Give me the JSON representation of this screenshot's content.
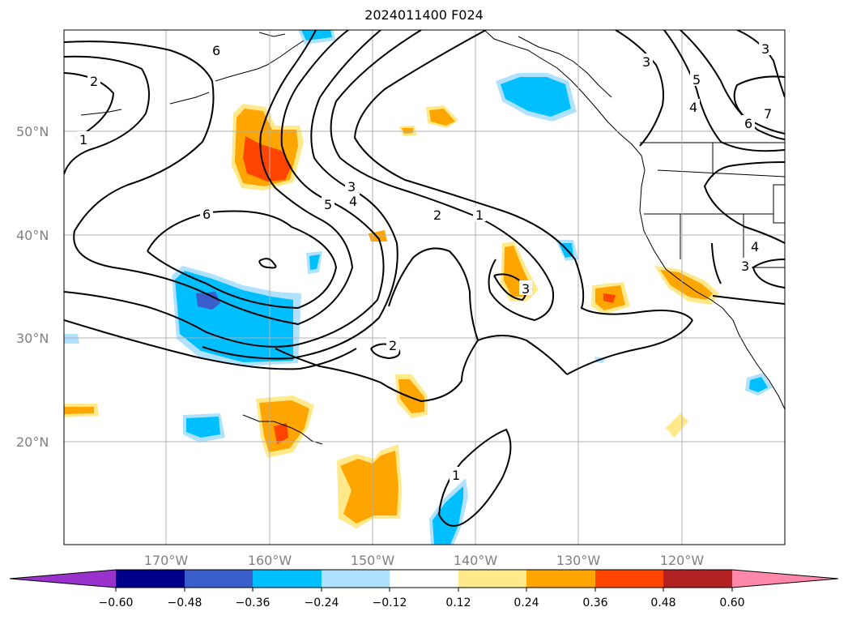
{
  "title": "2024011400 F024",
  "lat_labels": [
    "50°N",
    "40°N",
    "30°N",
    "20°N"
  ],
  "lon_labels": [
    "170°W",
    "160°W",
    "150°W",
    "140°W",
    "130°W",
    "120°W"
  ],
  "colorbar": {
    "ticks": [
      "−0.60",
      "−0.48",
      "−0.36",
      "−0.24",
      "−0.12",
      "0.12",
      "0.24",
      "0.36",
      "0.48",
      "0.60"
    ],
    "colors": [
      "#9932cc",
      "#00008b",
      "#3a5fcd",
      "#00bfff",
      "#b0e2ff",
      "#ffffff",
      "#ffe98a",
      "#ffa500",
      "#ff4500",
      "#b22222",
      "#ff88aa"
    ]
  },
  "contour_labels": [
    "6",
    "2",
    "1",
    "6",
    "3",
    "4",
    "5",
    "2",
    "1",
    "3",
    "2",
    "1",
    "3",
    "5",
    "6",
    "4",
    "3",
    "7",
    "4",
    "3"
  ]
}
